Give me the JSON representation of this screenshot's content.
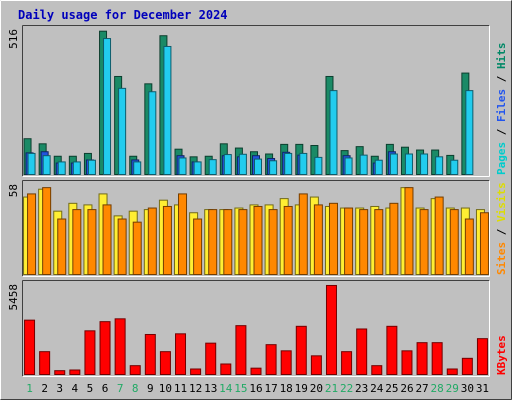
{
  "chart_data": {
    "type": "bar",
    "title": "Daily usage for December 2024",
    "categories": [
      "1",
      "2",
      "3",
      "4",
      "5",
      "6",
      "7",
      "8",
      "9",
      "10",
      "11",
      "12",
      "13",
      "14",
      "15",
      "16",
      "17",
      "18",
      "19",
      "20",
      "21",
      "22",
      "23",
      "24",
      "25",
      "26",
      "27",
      "28",
      "29",
      "30",
      "31"
    ],
    "weekend_days": [
      "1",
      "7",
      "8",
      "14",
      "15",
      "21",
      "22",
      "28",
      "29"
    ],
    "panels": [
      {
        "id": "hits-panel",
        "max_label": "516",
        "ylim": [
          0,
          516
        ],
        "side_labels": [
          {
            "text": "Pages",
            "color": "#00cccc"
          },
          {
            "text": " / ",
            "color": "#000000"
          },
          {
            "text": "Files",
            "color": "#2255ee"
          },
          {
            "text": " / ",
            "color": "#000000"
          },
          {
            "text": "Hits",
            "color": "#008866"
          }
        ],
        "series": [
          {
            "name": "Hits",
            "color": "#1a8a66",
            "values": [
              130,
              112,
              68,
              68,
              78,
              510,
              350,
              68,
              324,
              494,
              93,
              66,
              68,
              112,
              97,
              84,
              76,
              110,
              110,
              106,
              350,
              88,
              102,
              68,
              110,
              100,
              90,
              90,
              71,
              362,
              0
            ]
          },
          {
            "name": "Files",
            "color": "#2255dd",
            "values": [
              80,
              84,
              44,
              44,
              55,
              0,
              0,
              55,
              0,
              0,
              70,
              48,
              0,
              70,
              66,
              70,
              60,
              82,
              72,
              0,
              0,
              70,
              0,
              44,
              84,
              0,
              0,
              0,
              0,
              0,
              0
            ]
          },
          {
            "name": "Pages",
            "color": "#22ccee",
            "values": [
              78,
              70,
              48,
              48,
              54,
              484,
              308,
              48,
              296,
              456,
              62,
              48,
              56,
              74,
              75,
              58,
              52,
              78,
              78,
              64,
              300,
              62,
              72,
              54,
              76,
              76,
              76,
              66,
              54,
              300,
              0
            ]
          }
        ]
      },
      {
        "id": "visits-panel",
        "max_label": "58",
        "ylim": [
          0,
          58
        ],
        "side_labels": [
          {
            "text": "Sites",
            "color": "#ff8800"
          },
          {
            "text": " / ",
            "color": "#000000"
          },
          {
            "text": "Visits",
            "color": "#dddd00"
          }
        ],
        "series": [
          {
            "name": "Visits",
            "color": "#ffee33",
            "values": [
              50,
              55,
              41,
              46,
              45,
              52,
              38,
              41,
              42,
              48,
              45,
              40,
              42,
              42,
              43,
              45,
              45,
              49,
              45,
              50,
              44,
              43,
              43,
              44,
              43,
              56,
              43,
              49,
              43,
              43,
              42
            ]
          },
          {
            "name": "Sites",
            "color": "#ff8800",
            "values": [
              52,
              56,
              36,
              42,
              42,
              45,
              36,
              34,
              43,
              44,
              52,
              36,
              42,
              42,
              42,
              44,
              42,
              44,
              52,
              45,
              46,
              43,
              42,
              42,
              46,
              56,
              42,
              50,
              42,
              36,
              40
            ]
          }
        ]
      },
      {
        "id": "kbytes-panel",
        "max_label": "5458",
        "ylim": [
          0,
          5458
        ],
        "side_labels": [
          {
            "text": "KBytes",
            "color": "#ff0000"
          }
        ],
        "series": [
          {
            "name": "KBytes",
            "color": "#ff0000",
            "values": [
              3320,
              1430,
              290,
              330,
              2680,
              3230,
              3400,
              590,
              2460,
              1430,
              2500,
              390,
              1940,
              690,
              2990,
              440,
              1850,
              1480,
              2950,
              1180,
              5400,
              1430,
              2790,
              590,
              2950,
              1480,
              1970,
              1970,
              390,
              1030,
              2210
            ]
          }
        ]
      }
    ]
  }
}
